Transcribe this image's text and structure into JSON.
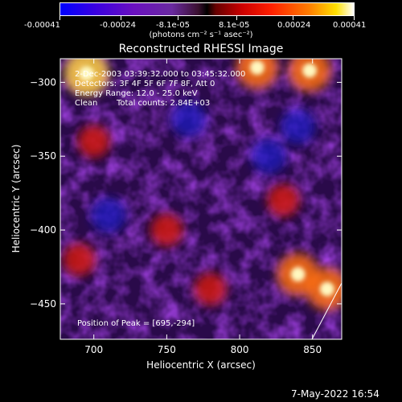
{
  "colorbar": {
    "tick_labels": [
      "-0.00041",
      "-0.00024",
      "-8.1e-05",
      "8.1e-05",
      "0.00024",
      "0.00041"
    ],
    "tick_values": [
      -0.00041,
      -0.00024,
      -8.1e-05,
      8.1e-05,
      0.00024,
      0.00041
    ],
    "range": [
      -0.00041,
      0.00041
    ],
    "unit_label": "(photons cm⁻² s⁻¹ asec⁻²)"
  },
  "image_info": {
    "time_range": "2-Dec-2003 03:39:32.000 to 03:45:32.000",
    "detectors": "Detectors: 3F 4F 5F 6F 7F 8F, Att 0",
    "energy_range": "Energy Range: 12.0 - 25.0 keV",
    "method": "Clean",
    "total_counts": "Total counts: 2.84E+03",
    "peak_position": "Position of Peak = [695,-294]"
  },
  "footer": {
    "timestamp": "7-May-2022 16:54"
  },
  "colors": {
    "background": "#000000",
    "axis": "#ffffff",
    "limb_line": "#ffffff"
  },
  "chart_data": {
    "type": "heatmap",
    "title": "Reconstructed RHESSI Image",
    "xlabel": "Heliocentric X (arcsec)",
    "ylabel": "Heliocentric Y (arcsec)",
    "xlim": [
      677,
      870
    ],
    "ylim": [
      -474,
      -284
    ],
    "x_ticks": [
      700,
      750,
      800,
      850
    ],
    "y_ticks": [
      -300,
      -350,
      -400,
      -450
    ],
    "colormap": "blue-purple-red-orange-yellow-white",
    "flux_range": [
      -0.00041,
      0.00041
    ],
    "bright_features": [
      {
        "x": 695,
        "y": -294,
        "level": "peak"
      },
      {
        "x": 812,
        "y": -290,
        "level": "high"
      },
      {
        "x": 848,
        "y": -292,
        "level": "high"
      },
      {
        "x": 860,
        "y": -440,
        "level": "high"
      },
      {
        "x": 840,
        "y": -430,
        "level": "high"
      },
      {
        "x": 700,
        "y": -340,
        "level": "medium"
      },
      {
        "x": 750,
        "y": -400,
        "level": "medium"
      },
      {
        "x": 780,
        "y": -440,
        "level": "medium"
      },
      {
        "x": 830,
        "y": -380,
        "level": "medium"
      },
      {
        "x": 690,
        "y": -420,
        "level": "medium"
      }
    ],
    "dark_features": [
      {
        "x": 765,
        "y": -325,
        "level": "low"
      },
      {
        "x": 820,
        "y": -350,
        "level": "low"
      },
      {
        "x": 710,
        "y": -390,
        "level": "low"
      },
      {
        "x": 840,
        "y": -330,
        "level": "low"
      }
    ]
  }
}
